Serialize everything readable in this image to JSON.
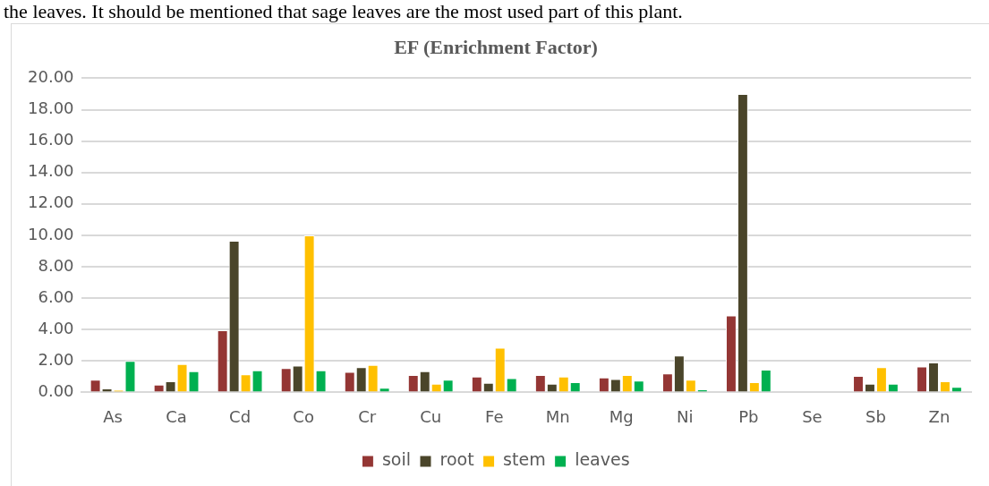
{
  "chart_data": {
    "type": "bar",
    "title": "EF (Enrichment Factor)",
    "annotations": [
      "the leaves. It should be mentioned that sage leaves are the most used part of this plant."
    ],
    "categories": [
      "As",
      "Ca",
      "Cd",
      "Co",
      "Cr",
      "Cu",
      "Fe",
      "Mn",
      "Mg",
      "Ni",
      "Pb",
      "Se",
      "Sb",
      "Zn"
    ],
    "series": [
      {
        "name": "soil",
        "color": "#943634",
        "values": [
          0.8,
          0.5,
          3.95,
          1.55,
          1.3,
          1.1,
          1.0,
          1.1,
          0.95,
          1.2,
          4.9,
          0,
          1.05,
          1.65
        ]
      },
      {
        "name": "root",
        "color": "#4a452a",
        "values": [
          0.25,
          0.7,
          9.65,
          1.7,
          1.6,
          1.35,
          0.6,
          0.55,
          0.85,
          2.35,
          19.0,
          0,
          0.55,
          1.9
        ]
      },
      {
        "name": "stem",
        "color": "#ffc000",
        "values": [
          0.15,
          1.8,
          1.15,
          10.0,
          1.75,
          0.55,
          2.85,
          1.0,
          1.1,
          0.8,
          0.65,
          0,
          1.6,
          0.7
        ]
      },
      {
        "name": "leaves",
        "color": "#00b050",
        "values": [
          2.0,
          1.35,
          1.4,
          1.4,
          0.3,
          0.8,
          0.9,
          0.65,
          0.75,
          0.2,
          1.45,
          0,
          0.55,
          0.35
        ]
      }
    ],
    "ylim": [
      0,
      20
    ],
    "yticks": [
      {
        "value": 0,
        "label": "0.00"
      },
      {
        "value": 2,
        "label": "2.00"
      },
      {
        "value": 4,
        "label": "4.00"
      },
      {
        "value": 6,
        "label": "6.00"
      },
      {
        "value": 8,
        "label": "8.00"
      },
      {
        "value": 10,
        "label": "10.00"
      },
      {
        "value": 12,
        "label": "12.00"
      },
      {
        "value": 14,
        "label": "14.00"
      },
      {
        "value": 16,
        "label": "16.00"
      },
      {
        "value": 18,
        "label": "18.00"
      },
      {
        "value": 20,
        "label": "20.00"
      }
    ],
    "grid": "y",
    "legend": "bottom"
  }
}
